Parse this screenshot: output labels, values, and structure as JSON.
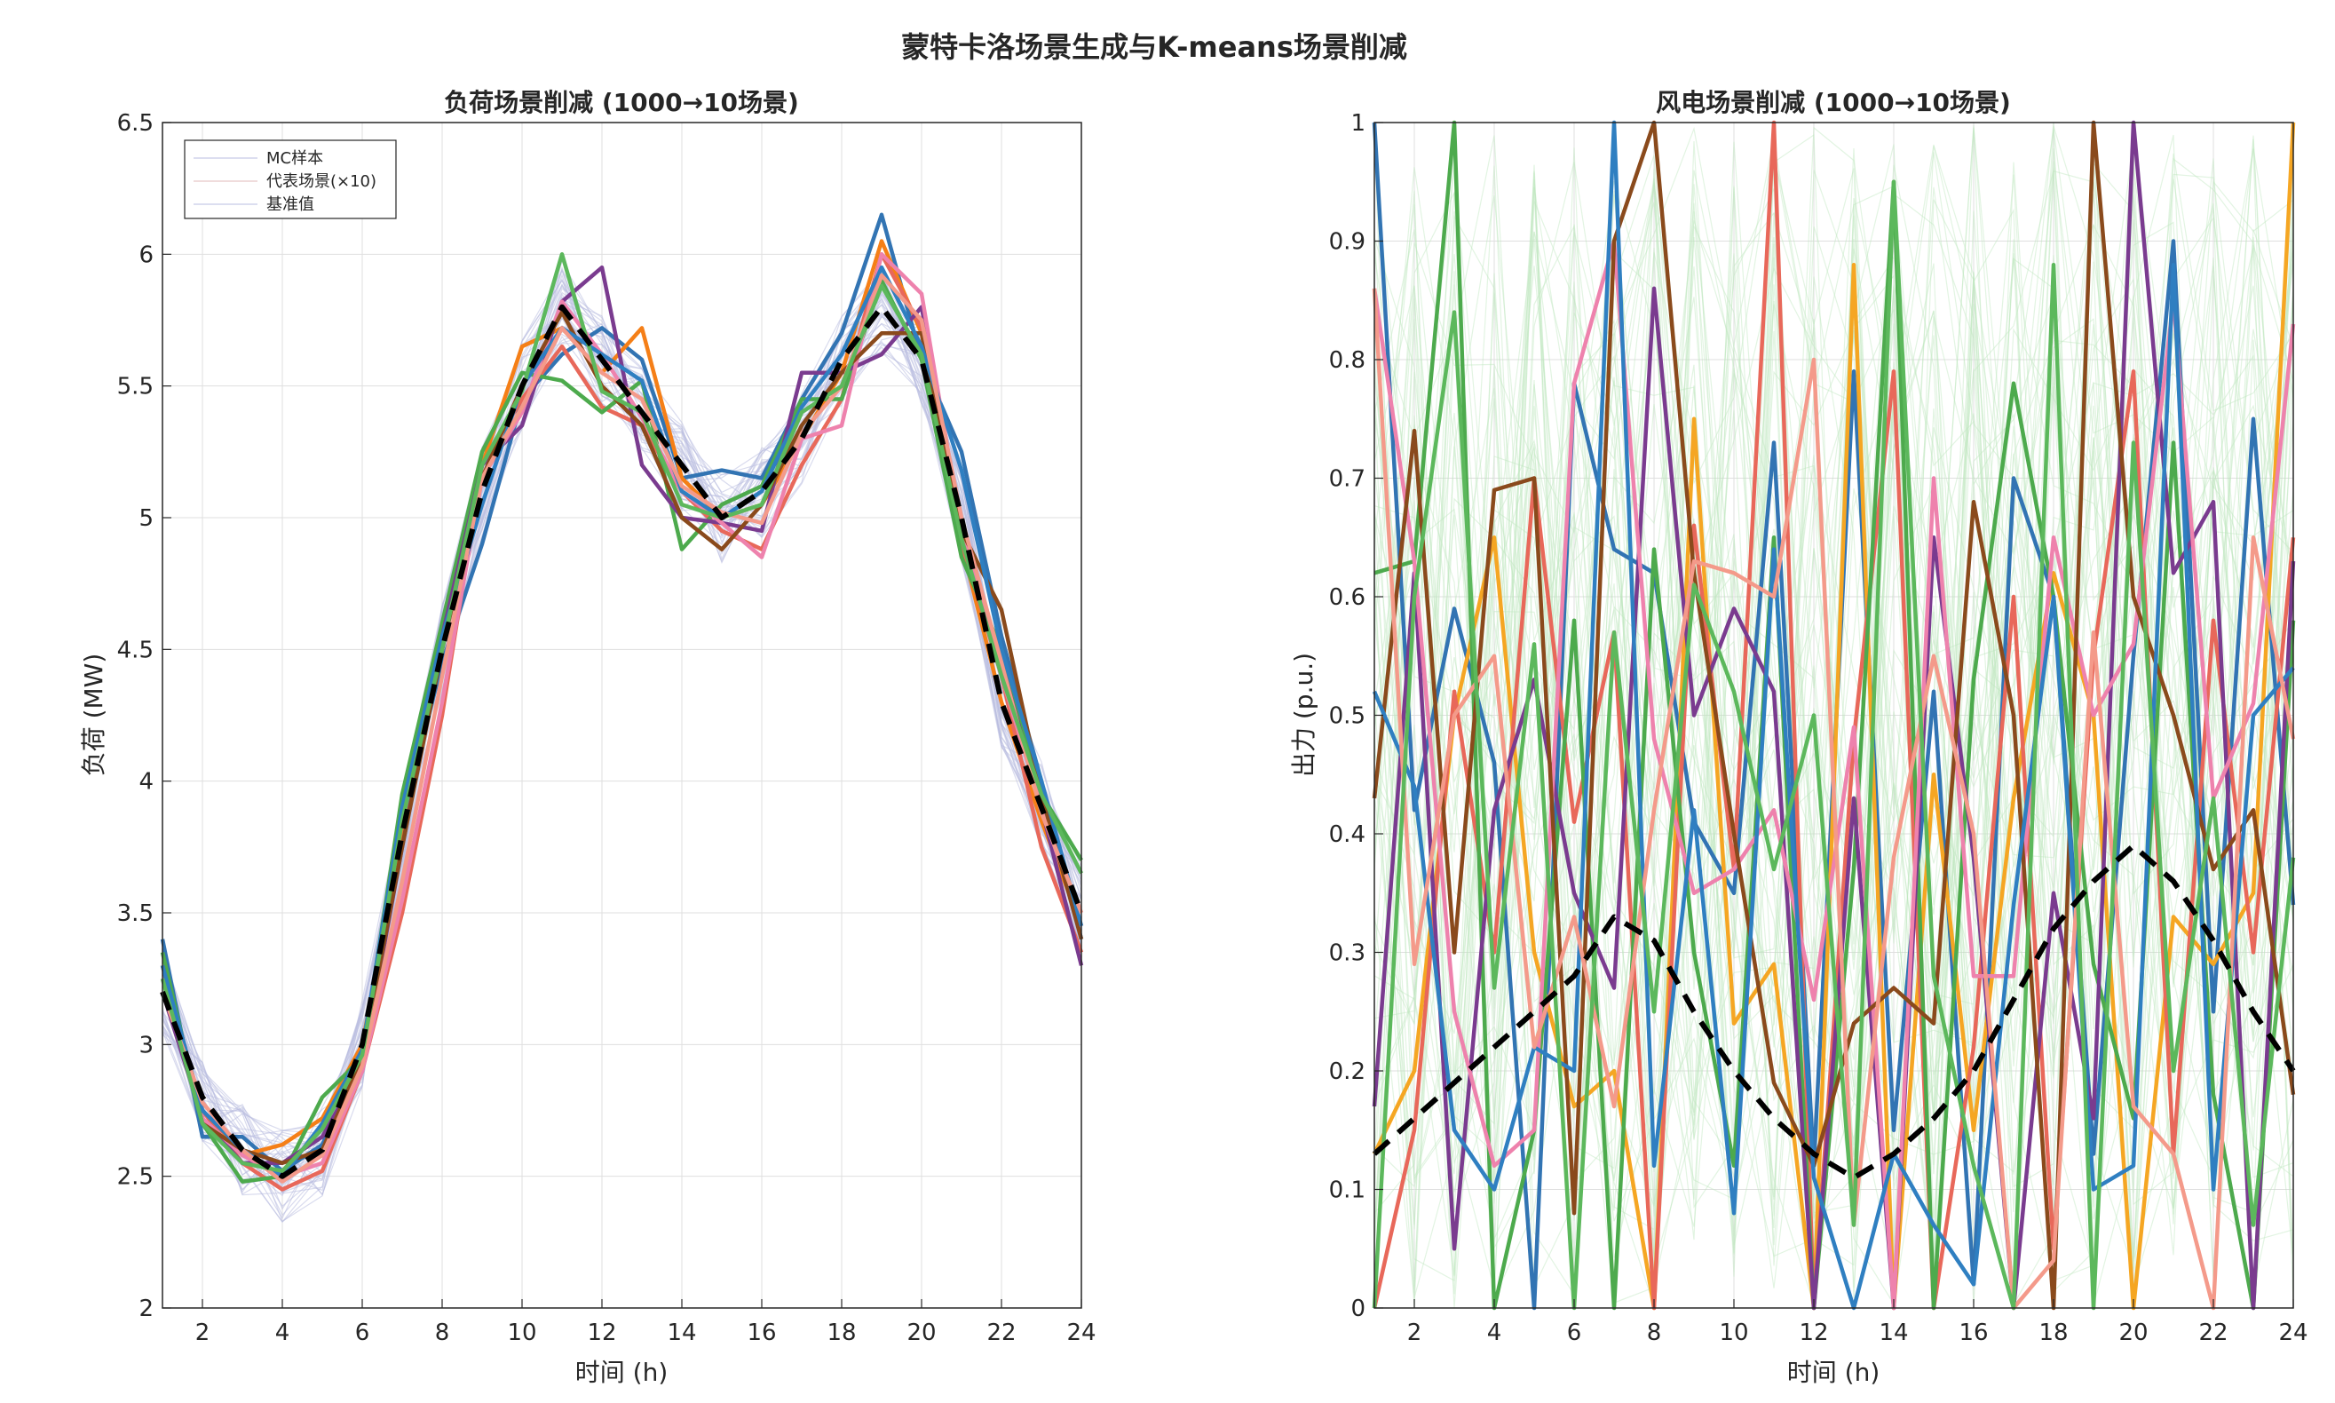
{
  "figure_title": "蒙特卡洛场景生成与K-means场景削减",
  "chart_data": [
    {
      "type": "line",
      "title": "负荷场景削减 (1000→10场景)",
      "xlabel": "时间 (h)",
      "ylabel": "负荷 (MW)",
      "xlim": [
        1,
        24
      ],
      "ylim": [
        2,
        6.5
      ],
      "xticks": [
        2,
        4,
        6,
        8,
        10,
        12,
        14,
        16,
        18,
        20,
        22,
        24
      ],
      "yticks": [
        2,
        2.5,
        3,
        3.5,
        4,
        4.5,
        5,
        5.5,
        6,
        6.5
      ],
      "grid": true,
      "legend": {
        "placement": "top-left",
        "entries": [
          "MC样本",
          "代表场景(×10)",
          "基准值"
        ]
      },
      "x": [
        1,
        2,
        3,
        4,
        5,
        6,
        7,
        8,
        9,
        10,
        11,
        12,
        13,
        14,
        15,
        16,
        17,
        18,
        19,
        20,
        21,
        22,
        23,
        24
      ],
      "baseline": {
        "name": "基准值",
        "color": "#000000",
        "style": "dashed",
        "values": [
          3.2,
          2.8,
          2.6,
          2.5,
          2.6,
          3.0,
          3.8,
          4.5,
          5.1,
          5.5,
          5.8,
          5.6,
          5.4,
          5.2,
          5.0,
          5.1,
          5.3,
          5.6,
          5.8,
          5.6,
          5.0,
          4.3,
          3.9,
          3.5
        ]
      },
      "series": [
        {
          "color": "#3274b3",
          "values": [
            3.4,
            2.65,
            2.65,
            2.52,
            2.62,
            2.95,
            3.85,
            4.45,
            4.9,
            5.45,
            5.62,
            5.72,
            5.6,
            5.15,
            5.18,
            5.15,
            5.45,
            5.7,
            6.15,
            5.6,
            5.25,
            4.55,
            4.0,
            3.4
          ]
        },
        {
          "color": "#f57f17",
          "values": [
            3.2,
            2.75,
            2.58,
            2.62,
            2.72,
            3.0,
            3.8,
            4.55,
            5.2,
            5.65,
            5.72,
            5.55,
            5.72,
            5.15,
            5.0,
            5.05,
            5.3,
            5.55,
            6.05,
            5.7,
            4.9,
            4.3,
            3.85,
            3.45
          ]
        },
        {
          "color": "#e8685a",
          "values": [
            3.3,
            2.75,
            2.55,
            2.45,
            2.52,
            2.9,
            3.5,
            4.25,
            5.2,
            5.45,
            5.65,
            5.42,
            5.35,
            5.1,
            4.95,
            4.88,
            5.2,
            5.45,
            6.0,
            5.72,
            4.9,
            4.4,
            3.75,
            3.35
          ]
        },
        {
          "color": "#4daa4d",
          "values": [
            3.35,
            2.7,
            2.48,
            2.5,
            2.8,
            2.95,
            3.95,
            4.6,
            5.25,
            5.55,
            5.52,
            5.4,
            5.52,
            4.88,
            5.05,
            5.12,
            5.45,
            5.45,
            5.9,
            5.6,
            4.85,
            4.5,
            3.95,
            3.7
          ]
        },
        {
          "color": "#7a3b8f",
          "values": [
            3.2,
            2.72,
            2.55,
            2.55,
            2.65,
            2.92,
            3.75,
            4.55,
            5.2,
            5.35,
            5.82,
            5.95,
            5.2,
            5.0,
            4.98,
            4.95,
            5.55,
            5.55,
            5.62,
            5.8,
            4.95,
            4.45,
            3.9,
            3.3
          ]
        },
        {
          "color": "#ee82ad",
          "values": [
            3.25,
            2.72,
            2.58,
            2.5,
            2.55,
            2.9,
            3.55,
            4.3,
            5.15,
            5.4,
            5.82,
            5.62,
            5.38,
            5.1,
            4.98,
            4.85,
            5.3,
            5.35,
            6.0,
            5.85,
            4.95,
            4.4,
            3.9,
            3.45
          ]
        },
        {
          "color": "#8a4a1c",
          "values": [
            3.3,
            2.7,
            2.6,
            2.55,
            2.6,
            2.95,
            3.75,
            4.5,
            5.15,
            5.5,
            5.78,
            5.5,
            5.35,
            5.0,
            4.88,
            5.05,
            5.35,
            5.55,
            5.7,
            5.7,
            4.95,
            4.65,
            3.95,
            3.4
          ]
        },
        {
          "color": "#2f7fc1",
          "values": [
            3.3,
            2.75,
            2.6,
            2.5,
            2.7,
            2.98,
            3.9,
            4.55,
            5.05,
            5.5,
            5.72,
            5.62,
            5.52,
            5.1,
            5.0,
            5.1,
            5.42,
            5.62,
            5.95,
            5.65,
            5.18,
            4.5,
            4.0,
            3.45
          ]
        },
        {
          "color": "#f49a8a",
          "values": [
            3.2,
            2.78,
            2.6,
            2.48,
            2.58,
            2.92,
            3.62,
            4.4,
            5.15,
            5.42,
            5.72,
            5.55,
            5.45,
            5.12,
            5.02,
            4.98,
            5.32,
            5.5,
            5.92,
            5.75,
            5.0,
            4.45,
            3.88,
            3.5
          ]
        },
        {
          "color": "#5cb85c",
          "values": [
            3.25,
            2.7,
            2.55,
            2.52,
            2.68,
            2.96,
            3.85,
            4.5,
            5.2,
            5.48,
            6.0,
            5.48,
            5.4,
            5.05,
            5.0,
            5.05,
            5.4,
            5.5,
            5.88,
            5.62,
            4.92,
            4.4,
            3.95,
            3.65
          ]
        }
      ]
    },
    {
      "type": "line",
      "title": "风电场景削减 (1000→10场景)",
      "xlabel": "时间 (h)",
      "ylabel": "出力 (p.u.)",
      "xlim": [
        1,
        24
      ],
      "ylim": [
        0,
        1
      ],
      "xticks": [
        2,
        4,
        6,
        8,
        10,
        12,
        14,
        16,
        18,
        20,
        22,
        24
      ],
      "yticks": [
        0,
        0.1,
        0.2,
        0.3,
        0.4,
        0.5,
        0.6,
        0.7,
        0.8,
        0.9,
        1
      ],
      "grid": true,
      "x": [
        1,
        2,
        3,
        4,
        5,
        6,
        7,
        8,
        9,
        10,
        11,
        12,
        13,
        14,
        15,
        16,
        17,
        18,
        19,
        20,
        21,
        22,
        23,
        24
      ],
      "baseline": {
        "name": "基准值",
        "color": "#000000",
        "style": "dashed",
        "values": [
          0.13,
          0.16,
          0.19,
          0.22,
          0.25,
          0.28,
          0.33,
          0.31,
          0.25,
          0.2,
          0.16,
          0.13,
          0.11,
          0.13,
          0.16,
          0.2,
          0.26,
          0.32,
          0.36,
          0.39,
          0.36,
          0.31,
          0.25,
          0.2
        ]
      },
      "series": [
        {
          "color": "#3274b3",
          "values": [
            1.0,
            0.42,
            0.59,
            0.46,
            0.0,
            0.78,
            0.64,
            0.62,
            0.41,
            0.35,
            0.73,
            0.12,
            0.79,
            0.15,
            0.52,
            0.02,
            0.7,
            0.6,
            0.13,
            0.55,
            0.9,
            0.25,
            0.75,
            0.34
          ]
        },
        {
          "color": "#f5a623",
          "values": [
            0.13,
            0.2,
            0.5,
            0.65,
            0.3,
            0.17,
            0.2,
            0.0,
            0.75,
            0.24,
            0.29,
            0.0,
            0.88,
            0.0,
            0.45,
            0.15,
            0.43,
            0.62,
            0.5,
            0.0,
            0.33,
            0.29,
            0.35,
            1.0
          ]
        },
        {
          "color": "#e8685a",
          "values": [
            0.0,
            0.15,
            0.52,
            0.3,
            0.7,
            0.41,
            0.57,
            0.0,
            0.66,
            0.37,
            1.0,
            0.0,
            0.48,
            0.79,
            0.0,
            0.22,
            0.6,
            0.05,
            0.55,
            0.79,
            0.13,
            0.58,
            0.3,
            0.65
          ]
        },
        {
          "color": "#4daa4d",
          "values": [
            0.62,
            0.63,
            1.0,
            0.0,
            0.15,
            0.58,
            0.0,
            0.64,
            0.3,
            0.12,
            0.65,
            0.0,
            0.37,
            0.95,
            0.0,
            0.53,
            0.78,
            0.6,
            0.29,
            0.16,
            0.73,
            0.18,
            0.0,
            0.58
          ]
        },
        {
          "color": "#7a3b8f",
          "values": [
            0.17,
            0.62,
            0.05,
            0.42,
            0.53,
            0.35,
            0.27,
            0.86,
            0.5,
            0.59,
            0.52,
            0.0,
            0.43,
            0.0,
            0.65,
            0.38,
            0.0,
            0.35,
            0.16,
            1.0,
            0.62,
            0.68,
            0.0,
            0.63
          ]
        },
        {
          "color": "#ee82ad",
          "values": [
            0.86,
            0.63,
            0.25,
            0.12,
            0.15,
            0.78,
            0.9,
            0.48,
            0.35,
            0.37,
            0.42,
            0.26,
            0.49,
            0.0,
            0.7,
            0.28,
            0.28,
            0.65,
            0.5,
            0.56,
            0.85,
            0.43,
            0.51,
            0.83
          ]
        },
        {
          "color": "#8a4a1c",
          "values": [
            0.43,
            0.74,
            0.3,
            0.69,
            0.7,
            0.08,
            0.9,
            1.0,
            0.62,
            0.4,
            0.19,
            0.12,
            0.24,
            0.27,
            0.24,
            0.68,
            0.5,
            0.0,
            1.0,
            0.6,
            0.5,
            0.37,
            0.42,
            0.18
          ]
        },
        {
          "color": "#2f7fc1",
          "values": [
            0.52,
            0.44,
            0.15,
            0.1,
            0.22,
            0.2,
            1.0,
            0.12,
            0.42,
            0.08,
            0.64,
            0.11,
            0.0,
            0.13,
            0.07,
            0.02,
            0.34,
            0.6,
            0.1,
            0.12,
            0.88,
            0.1,
            0.5,
            0.54
          ]
        },
        {
          "color": "#f49a8a",
          "values": [
            0.86,
            0.29,
            0.5,
            0.55,
            0.22,
            0.33,
            0.17,
            0.42,
            0.63,
            0.62,
            0.6,
            0.8,
            0.07,
            0.38,
            0.55,
            0.4,
            0.0,
            0.04,
            0.57,
            0.17,
            0.13,
            0.0,
            0.65,
            0.48
          ]
        },
        {
          "color": "#5cb85c",
          "values": [
            0.0,
            0.6,
            0.84,
            0.27,
            0.56,
            0.0,
            0.57,
            0.25,
            0.61,
            0.52,
            0.37,
            0.5,
            0.07,
            0.95,
            0.28,
            0.12,
            0.0,
            0.88,
            0.0,
            0.73,
            0.2,
            0.43,
            0.07,
            0.38
          ]
        }
      ]
    }
  ]
}
